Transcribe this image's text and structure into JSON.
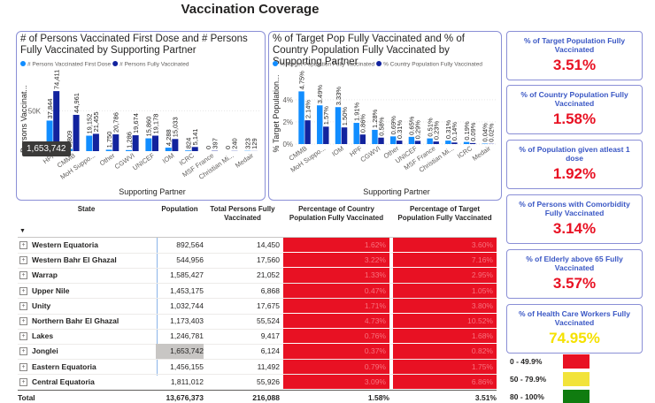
{
  "header": {
    "title": "Vaccination Coverage"
  },
  "chart_data": [
    {
      "type": "bar",
      "title": "# of Persons Vaccinated First Dose and # Persons Fully Vaccinated by Supporting Partner",
      "x_label": "Supporting Partner",
      "y_label": "Persons Vaccinat...",
      "categories": [
        "HPF",
        "CMMB",
        "MoH Suppo...",
        "Other",
        "CGWVI",
        "UNICEF",
        "IOM",
        "ICRC",
        "MSF France",
        "Christian Mi...",
        "Medair"
      ],
      "series": [
        {
          "name": "# Persons Vaccinated First Dose",
          "color": "#118dff",
          "values": [
            37844,
            2809,
            19152,
            1750,
            1286,
            15860,
            4288,
            824,
            0,
            0,
            323
          ],
          "value_labels": [
            "37,844",
            "2,809",
            "19,152",
            "1,750",
            "1,286",
            "15,860",
            "4,288",
            "824",
            "0",
            "0",
            "323"
          ]
        },
        {
          "name": "# Persons Fully Vaccinated",
          "color": "#12239e",
          "values": [
            74411,
            44961,
            21455,
            20786,
            19674,
            19178,
            15033,
            5141,
            397,
            240,
            129
          ],
          "value_labels": [
            "74,411",
            "44,961",
            "21,455",
            "20,786",
            "19,674",
            "19,178",
            "15,033",
            "5,141",
            "397",
            "240",
            "129"
          ]
        }
      ],
      "ylim": [
        0,
        80000
      ],
      "yticks": [
        {
          "value": 50000,
          "label": "50K"
        }
      ],
      "legend": "top-left",
      "tooltip": "1,653,742"
    },
    {
      "type": "bar",
      "title": "% of Target Pop Fully Vaccinated and % of Country Population Fully Vaccinated by Supporting Partner",
      "x_label": "Supporting Partner",
      "y_label": "% Target Population...",
      "categories": [
        "CMMB",
        "MoH Suppo...",
        "IOM",
        "HPF",
        "CGWVI",
        "Other",
        "UNICEF",
        "MSF France",
        "Christian Mi...",
        "ICRC",
        "Medair"
      ],
      "series": [
        {
          "name": "% Target Population Fully Vaccinated",
          "color": "#118dff",
          "values": [
            4.75,
            3.49,
            3.33,
            1.91,
            1.28,
            0.69,
            0.65,
            0.51,
            0.31,
            0.19,
            0.04
          ],
          "value_labels": [
            "4.75%",
            "3.49%",
            "3.33%",
            "1.91%",
            "1.28%",
            "0.69%",
            "0.65%",
            "0.51%",
            "0.31%",
            "0.19%",
            "0.04%"
          ]
        },
        {
          "name": "% Country Population Fully Vaccinated",
          "color": "#12239e",
          "values": [
            2.14,
            1.57,
            1.5,
            0.86,
            0.58,
            0.31,
            0.29,
            0.23,
            0.14,
            0.09,
            0.02
          ],
          "value_labels": [
            "2.14%",
            "1.57%",
            "1.50%",
            "0.86%",
            "0.58%",
            "0.31%",
            "0.29%",
            "0.23%",
            "0.14%",
            "0.09%",
            "0.02%"
          ]
        }
      ],
      "ylim": [
        0,
        5.5
      ],
      "yticks": [
        {
          "value": 0,
          "label": "0%"
        },
        {
          "value": 2,
          "label": "2%"
        },
        {
          "value": 4,
          "label": "4%"
        }
      ],
      "legend": "top-left"
    }
  ],
  "kpis": [
    {
      "title": "% of Target Population Fully Vaccinated",
      "value": "3.51%",
      "color": "#e81123"
    },
    {
      "title": "% of Country Population Fully Vaccinated",
      "value": "1.58%",
      "color": "#e81123"
    },
    {
      "title": "% of Population given atleast 1 dose",
      "value": "1.92%",
      "color": "#e81123"
    },
    {
      "title": "% of Persons with Comorbidity Fully Vaccinated",
      "value": "3.14%",
      "color": "#e81123"
    },
    {
      "title": "% of Elderly above 65 Fully Vaccinated",
      "value": "3.57%",
      "color": "#e81123"
    },
    {
      "title": "% of Health Care Workers Fully Vaccinated",
      "value": "74.95%",
      "color": "#f5e100"
    }
  ],
  "color_legend": [
    {
      "label": "0 - 49.9%",
      "color": "#e81123"
    },
    {
      "label": "50 - 79.9%",
      "color": "#f2e33a"
    },
    {
      "label": "80 - 100%",
      "color": "#107c10"
    }
  ],
  "table": {
    "columns": [
      "State",
      "Population",
      "Total Persons Fully Vaccinated",
      "Percentage of Country Population Fully Vaccinated",
      "Percentage of Target Population Fully Vaccinated"
    ],
    "rows": [
      [
        "Western Equatoria",
        "892,564",
        "14,450",
        "1.62%",
        "3.60%"
      ],
      [
        "Western Bahr El Ghazal",
        "544,956",
        "17,560",
        "3.22%",
        "7.16%"
      ],
      [
        "Warrap",
        "1,585,427",
        "21,052",
        "1.33%",
        "2.95%"
      ],
      [
        "Upper Nile",
        "1,453,175",
        "6,868",
        "0.47%",
        "1.05%"
      ],
      [
        "Unity",
        "1,032,744",
        "17,675",
        "1.71%",
        "3.80%"
      ],
      [
        "Northern Bahr El Ghazal",
        "1,173,403",
        "55,524",
        "4.73%",
        "10.52%"
      ],
      [
        "Lakes",
        "1,246,781",
        "9,417",
        "0.76%",
        "1.68%"
      ],
      [
        "Jonglei",
        "1,653,742",
        "6,124",
        "0.37%",
        "0.82%"
      ],
      [
        "Eastern Equatoria",
        "1,456,155",
        "11,492",
        "0.79%",
        "1.75%"
      ],
      [
        "Central Equatoria",
        "1,811,012",
        "55,926",
        "3.09%",
        "6.86%"
      ]
    ],
    "total": [
      "Total",
      "13,676,373",
      "216,088",
      "1.58%",
      "3.51%"
    ]
  }
}
